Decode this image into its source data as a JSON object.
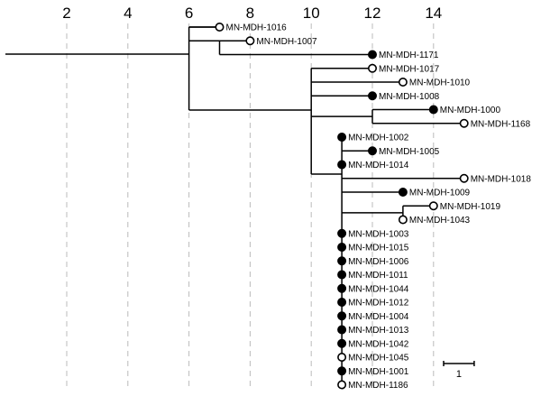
{
  "axis": {
    "ticks": [
      2,
      4,
      6,
      8,
      10,
      12,
      14
    ]
  },
  "scale_bar": {
    "value": 1,
    "label": "1"
  },
  "tree": {
    "children": [
      {
        "children": [
          {
            "tip": "MN-MDH-1016",
            "at": 7,
            "marker": "open"
          },
          {
            "node": 7,
            "children": [
              {
                "tip": "MN-MDH-1007",
                "at": 8,
                "marker": "open"
              },
              {
                "tip": "MN-MDH-1171",
                "at": 12,
                "marker": "filled"
              }
            ]
          }
        ],
        "node": 6
      },
      {
        "node": 6,
        "children": [
          {
            "node": 10,
            "children": [
              {
                "tip": "MN-MDH-1017",
                "at": 12,
                "marker": "open"
              },
              {
                "tip": "MN-MDH-1010",
                "at": 13,
                "marker": "open"
              },
              {
                "tip": "MN-MDH-1008",
                "at": 12,
                "marker": "filled"
              },
              {
                "node": 12,
                "children": [
                  {
                    "tip": "MN-MDH-1000",
                    "at": 14,
                    "marker": "filled"
                  },
                  {
                    "tip": "MN-MDH-1168",
                    "at": 15,
                    "marker": "open"
                  }
                ]
              },
              {
                "node": 11,
                "children": [
                  {
                    "tip": "MN-MDH-1002",
                    "at": 11,
                    "marker": "filled"
                  },
                  {
                    "tip": "MN-MDH-1005",
                    "at": 12,
                    "marker": "filled"
                  },
                  {
                    "tip": "MN-MDH-1014",
                    "at": 11,
                    "marker": "filled"
                  },
                  {
                    "tip": "MN-MDH-1018",
                    "at": 15,
                    "marker": "open"
                  },
                  {
                    "tip": "MN-MDH-1009",
                    "at": 13,
                    "marker": "filled"
                  },
                  {
                    "node": 13,
                    "children": [
                      {
                        "tip": "MN-MDH-1019",
                        "at": 14,
                        "marker": "open"
                      },
                      {
                        "tip": "MN-MDH-1043",
                        "at": 13,
                        "marker": "open"
                      }
                    ]
                  },
                  {
                    "tip": "MN-MDH-1003",
                    "at": 11,
                    "marker": "filled"
                  },
                  {
                    "tip": "MN-MDH-1015",
                    "at": 11,
                    "marker": "filled"
                  },
                  {
                    "tip": "MN-MDH-1006",
                    "at": 11,
                    "marker": "filled"
                  },
                  {
                    "tip": "MN-MDH-1011",
                    "at": 11,
                    "marker": "filled"
                  },
                  {
                    "tip": "MN-MDH-1044",
                    "at": 11,
                    "marker": "filled"
                  },
                  {
                    "tip": "MN-MDH-1012",
                    "at": 11,
                    "marker": "filled"
                  },
                  {
                    "tip": "MN-MDH-1004",
                    "at": 11,
                    "marker": "filled"
                  },
                  {
                    "tip": "MN-MDH-1013",
                    "at": 11,
                    "marker": "filled"
                  },
                  {
                    "tip": "MN-MDH-1042",
                    "at": 11,
                    "marker": "filled"
                  },
                  {
                    "tip": "MN-MDH-1045",
                    "at": 11,
                    "marker": "open"
                  },
                  {
                    "tip": "MN-MDH-1001",
                    "at": 11,
                    "marker": "filled"
                  },
                  {
                    "tip": "MN-MDH-1186",
                    "at": 11,
                    "marker": "open"
                  }
                ]
              }
            ]
          }
        ]
      }
    ],
    "root": 0
  }
}
